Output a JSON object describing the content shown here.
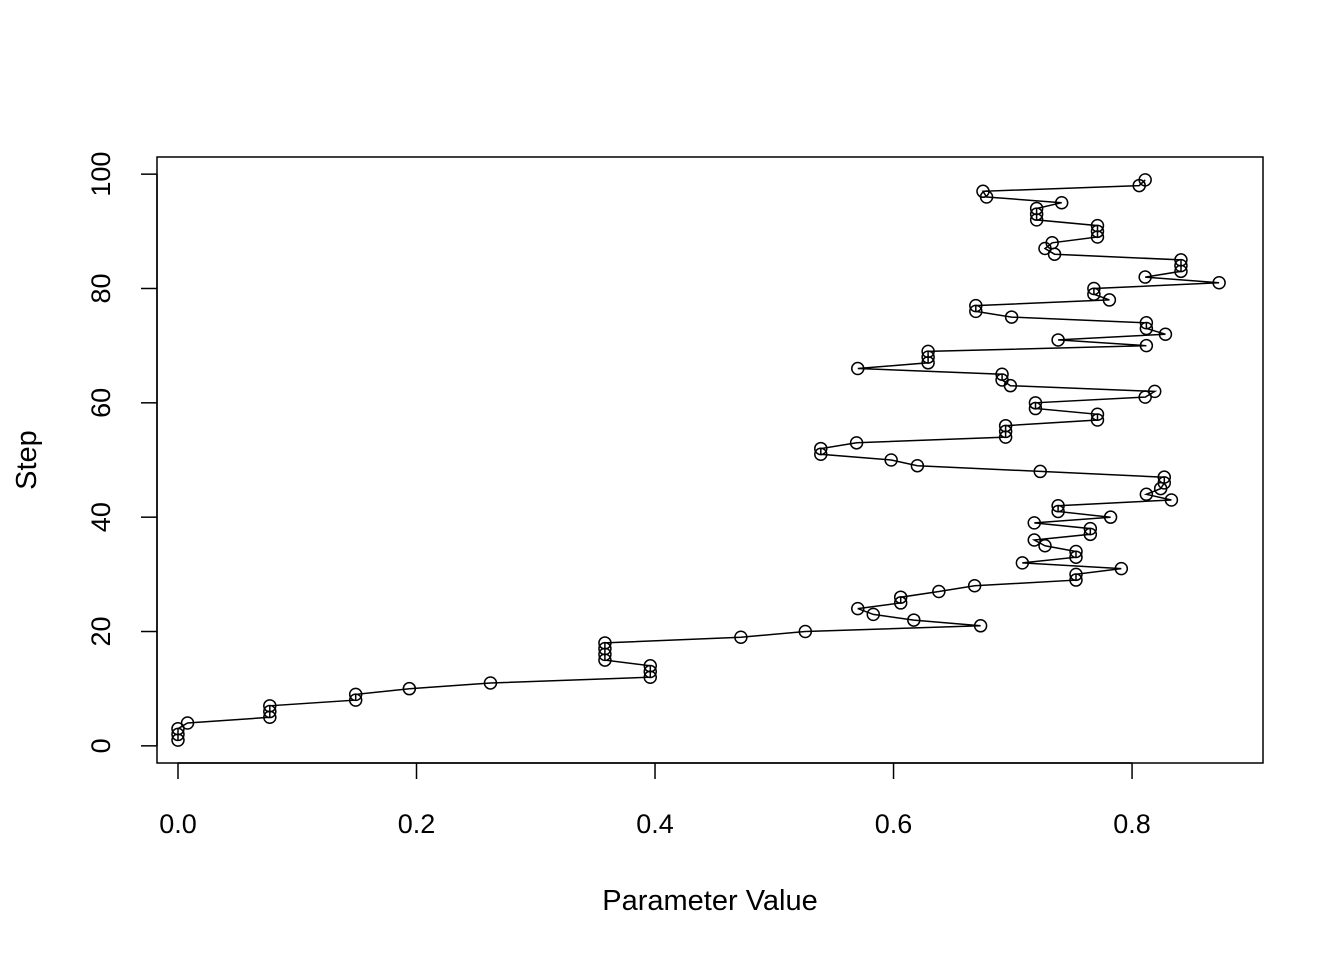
{
  "chart_data": {
    "type": "line",
    "xlabel": "Parameter Value",
    "ylabel": "Step",
    "xlim": [
      -0.0176,
      0.9098
    ],
    "ylim": [
      -3,
      103
    ],
    "x_ticks": [
      0.0,
      0.2,
      0.4,
      0.6,
      0.8
    ],
    "x_tick_labels": [
      "0.0",
      "0.2",
      "0.4",
      "0.6",
      "0.8"
    ],
    "y_ticks": [
      0,
      20,
      40,
      60,
      80,
      100
    ],
    "y_tick_labels": [
      "0",
      "20",
      "40",
      "60",
      "80",
      "100"
    ],
    "grid": false,
    "legend": "none",
    "point_marker": "open-circle",
    "line_color": "#000000",
    "series": [
      {
        "y": [
          1,
          2,
          3,
          4,
          5,
          6,
          7,
          8,
          9,
          10,
          11,
          12,
          13,
          14,
          15,
          16,
          17,
          18,
          19,
          20,
          21,
          22,
          23,
          24,
          25,
          26,
          27,
          28,
          29,
          30,
          31,
          32,
          33,
          34,
          35,
          36,
          37,
          38,
          39,
          40,
          41,
          42,
          43,
          44,
          45,
          46,
          47,
          48,
          49,
          50,
          51,
          52,
          53,
          54,
          55,
          56,
          57,
          58,
          59,
          60,
          61,
          62,
          63,
          64,
          65,
          66,
          67,
          68,
          69,
          70,
          71,
          72,
          73,
          74,
          75,
          76,
          77,
          78,
          79,
          80,
          81,
          82,
          83,
          84,
          85,
          86,
          87,
          88,
          89,
          90,
          91,
          92,
          93,
          94,
          95,
          96,
          97,
          98,
          99
        ],
        "x": [
          0.0,
          0.0,
          0.0,
          0.008,
          0.077,
          0.077,
          0.077,
          0.149,
          0.149,
          0.194,
          0.262,
          0.396,
          0.396,
          0.396,
          0.358,
          0.358,
          0.358,
          0.358,
          0.472,
          0.526,
          0.673,
          0.617,
          0.583,
          0.57,
          0.606,
          0.606,
          0.638,
          0.668,
          0.753,
          0.753,
          0.791,
          0.708,
          0.753,
          0.753,
          0.727,
          0.718,
          0.765,
          0.765,
          0.718,
          0.782,
          0.738,
          0.738,
          0.833,
          0.812,
          0.824,
          0.827,
          0.827,
          0.723,
          0.62,
          0.598,
          0.539,
          0.539,
          0.569,
          0.694,
          0.694,
          0.694,
          0.771,
          0.771,
          0.719,
          0.719,
          0.811,
          0.819,
          0.698,
          0.691,
          0.691,
          0.57,
          0.629,
          0.629,
          0.629,
          0.812,
          0.738,
          0.828,
          0.812,
          0.812,
          0.699,
          0.669,
          0.669,
          0.781,
          0.768,
          0.768,
          0.873,
          0.811,
          0.841,
          0.841,
          0.841,
          0.735,
          0.727,
          0.733,
          0.771,
          0.771,
          0.771,
          0.72,
          0.72,
          0.72,
          0.741,
          0.678,
          0.675,
          0.806,
          0.811
        ]
      }
    ]
  }
}
